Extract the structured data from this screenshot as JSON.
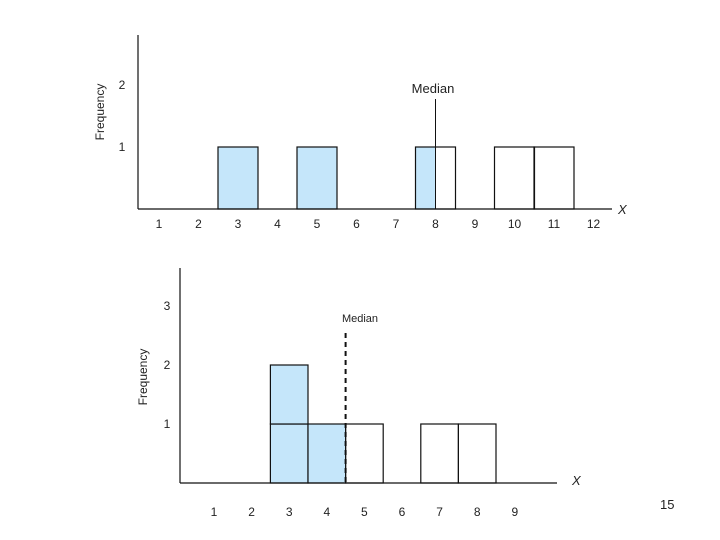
{
  "page_number": "15",
  "colors": {
    "shaded": "#c5e6fa",
    "stroke": "#111111"
  },
  "chart_data": [
    {
      "type": "bar",
      "ylabel": "Frequency",
      "xlabel": "X",
      "x_ticks": [
        "1",
        "2",
        "3",
        "4",
        "5",
        "6",
        "7",
        "8",
        "9",
        "10",
        "11",
        "12"
      ],
      "y_ticks": [
        "1",
        "2"
      ],
      "ylim": [
        0,
        2.5
      ],
      "bars": [
        {
          "x": 3,
          "value": 1,
          "shaded_fraction": 1
        },
        {
          "x": 5,
          "value": 1,
          "shaded_fraction": 1
        },
        {
          "x": 8,
          "value": 1,
          "shaded_fraction": 0.5
        },
        {
          "x": 10,
          "value": 1,
          "shaded_fraction": 0
        },
        {
          "x": 11,
          "value": 1,
          "shaded_fraction": 0
        }
      ],
      "median": {
        "label": "Median",
        "x": 8,
        "line_style": "solid"
      }
    },
    {
      "type": "bar",
      "ylabel": "Frequency",
      "xlabel": "X",
      "x_ticks": [
        "1",
        "2",
        "3",
        "4",
        "5",
        "6",
        "7",
        "8",
        "9"
      ],
      "y_ticks": [
        "1",
        "2",
        "3"
      ],
      "ylim": [
        0,
        3.5
      ],
      "bars": [
        {
          "x": 3,
          "value": 2,
          "shaded_fraction": 1
        },
        {
          "x": 4,
          "value": 1,
          "shaded_fraction": 1
        },
        {
          "x": 5,
          "value": 1,
          "shaded_fraction": 0
        },
        {
          "x": 7,
          "value": 1,
          "shaded_fraction": 0
        },
        {
          "x": 8,
          "value": 1,
          "shaded_fraction": 0
        }
      ],
      "median": {
        "label": "Median",
        "x": 4.5,
        "line_style": "dashed"
      }
    }
  ]
}
